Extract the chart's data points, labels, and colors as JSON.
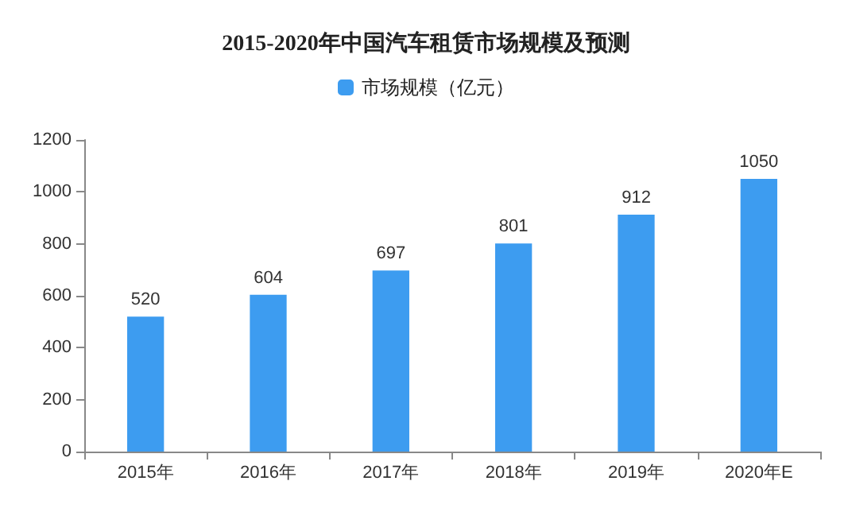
{
  "chart_data": {
    "type": "bar",
    "title": "2015-2020年中国汽车租赁市场规模及预测",
    "categories": [
      "2015年",
      "2016年",
      "2017年",
      "2018年",
      "2019年",
      "2020年E"
    ],
    "series": [
      {
        "name": "市场规模（亿元）",
        "color": "#3d9cf0",
        "values": [
          520,
          604,
          697,
          801,
          912,
          1050
        ]
      }
    ],
    "ylim": [
      0,
      1200
    ],
    "yticks": [
      0,
      200,
      400,
      600,
      800,
      1000,
      1200
    ],
    "grid": false,
    "legend": "top",
    "data_labels": true
  }
}
